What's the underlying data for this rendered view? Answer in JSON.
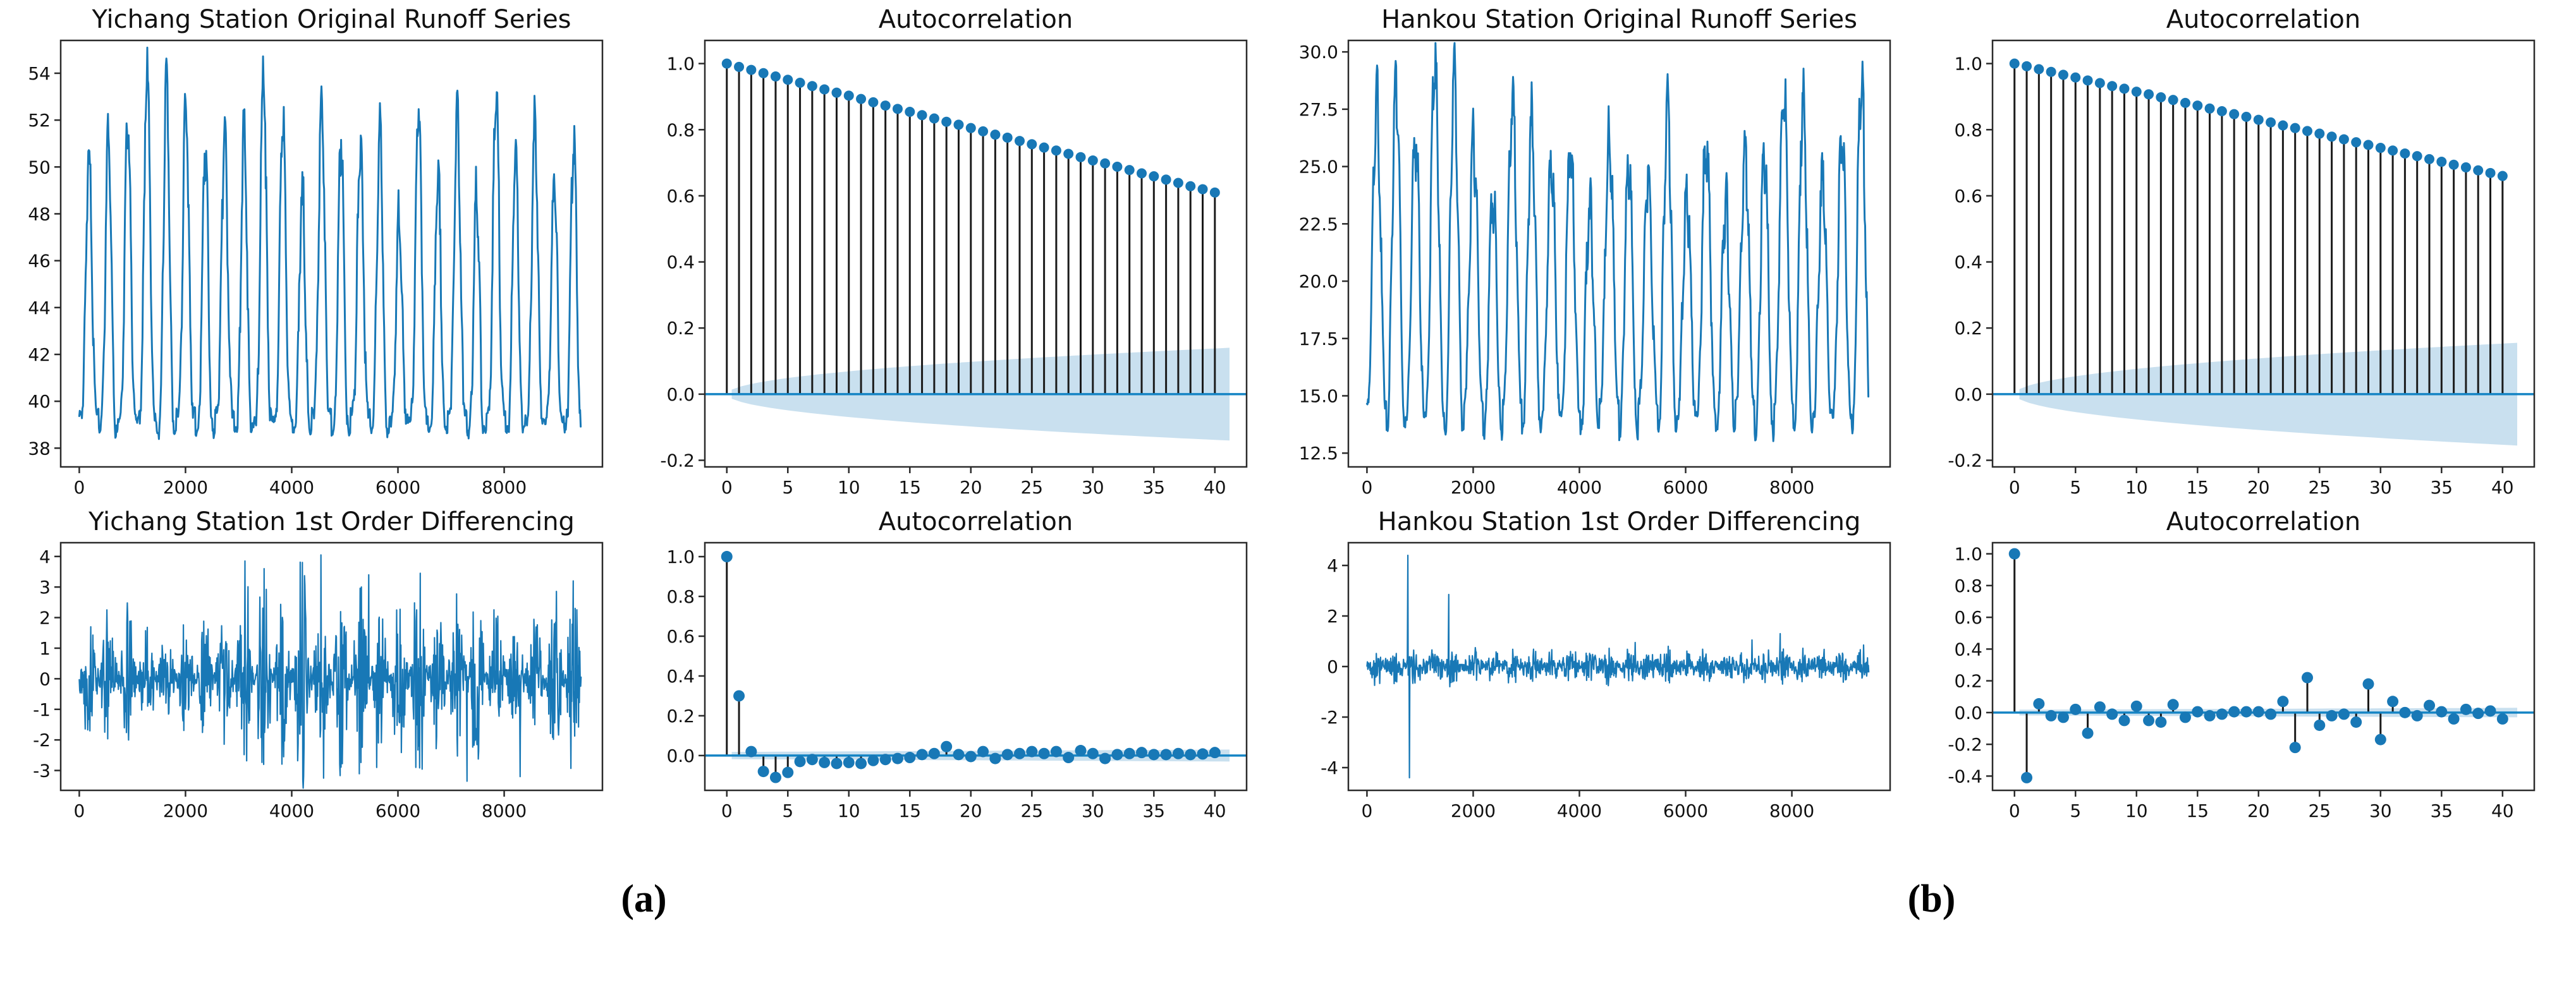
{
  "figure_captions": {
    "a": "(a)",
    "b": "(b)"
  },
  "palette": {
    "line_blue": "#1878b6",
    "dot_blue": "#1878b6",
    "zero_line_blue": "#1484c4",
    "band_blue": "#c9e0ef",
    "stem_black": "#1b1b1b",
    "axis_black": "#2b2b2b",
    "text_black": "#111111"
  },
  "chart_data": [
    {
      "id": "yichang-original",
      "panel": "a",
      "type": "line",
      "line_width": 3,
      "title": "Yichang Station Original Runoff Series",
      "xlim": [
        -350,
        9850
      ],
      "ylim": [
        37.2,
        55.4
      ],
      "x_tick_vals": [
        0,
        2000,
        4000,
        6000,
        8000
      ],
      "x_ticks": [
        "0",
        "2000",
        "4000",
        "6000",
        "8000"
      ],
      "y_tick_vals": [
        38,
        40,
        42,
        44,
        46,
        48,
        50,
        52,
        54
      ],
      "y_ticks": [
        "38",
        "40",
        "42",
        "44",
        "46",
        "48",
        "50",
        "52",
        "54"
      ],
      "grid": false,
      "legend": "none",
      "gen": {
        "kind": "seasonal",
        "seed": 7,
        "n": 9450,
        "step": 10,
        "period": 365,
        "sharpness": 3.5,
        "trough_base": 38.6,
        "trough_var": 1.0,
        "sub_osc": 1.0,
        "noise": 0.5,
        "peaks": [
          50.2,
          50.9,
          51.8,
          54.4,
          53.6,
          52.6,
          50.6,
          51.5,
          51.7,
          53.9,
          52.0,
          48.9,
          52.8,
          51.0,
          51.1,
          51.7,
          48.0,
          52.7,
          49.7,
          52.4,
          48.8,
          53.5,
          50.8,
          52.1,
          49.5,
          51.3
        ]
      }
    },
    {
      "id": "yichang-acf-original",
      "panel": "a",
      "type": "stem",
      "dot_r": 8,
      "title": "Autocorrelation",
      "xlim": [
        -1.8,
        42.6
      ],
      "ylim": [
        -0.22,
        1.07
      ],
      "x_tick_vals": [
        0,
        5,
        10,
        15,
        20,
        25,
        30,
        35,
        40
      ],
      "x_ticks": [
        "0",
        "5",
        "10",
        "15",
        "20",
        "25",
        "30",
        "35",
        "40"
      ],
      "y_tick_vals": [
        -0.2,
        0.0,
        0.2,
        0.4,
        0.6,
        0.8,
        1.0
      ],
      "y_ticks": [
        "-0.2",
        "0.0",
        "0.2",
        "0.4",
        "0.6",
        "0.8",
        "1.0"
      ],
      "band": {
        "max": 0.14,
        "shape": "sqrt"
      },
      "values": [
        1.0,
        0.99,
        0.981,
        0.971,
        0.961,
        0.951,
        0.942,
        0.932,
        0.922,
        0.912,
        0.903,
        0.893,
        0.883,
        0.873,
        0.863,
        0.854,
        0.844,
        0.834,
        0.824,
        0.815,
        0.805,
        0.795,
        0.785,
        0.776,
        0.766,
        0.756,
        0.746,
        0.737,
        0.727,
        0.717,
        0.707,
        0.698,
        0.688,
        0.678,
        0.668,
        0.659,
        0.649,
        0.639,
        0.629,
        0.62,
        0.61
      ]
    },
    {
      "id": "yichang-differencing",
      "panel": "a",
      "type": "line",
      "line_width": 2.2,
      "title": "Yichang Station 1st Order Differencing",
      "xlim": [
        -350,
        9850
      ],
      "ylim": [
        -3.65,
        4.45
      ],
      "x_tick_vals": [
        0,
        2000,
        4000,
        6000,
        8000
      ],
      "x_ticks": [
        "0",
        "2000",
        "4000",
        "6000",
        "8000"
      ],
      "y_tick_vals": [
        -3,
        -2,
        -1,
        0,
        1,
        2,
        3,
        4
      ],
      "y_ticks": [
        "-3",
        "-2",
        "-1",
        "0",
        "1",
        "2",
        "3",
        "4"
      ],
      "gen": {
        "kind": "diff",
        "seed": 13,
        "n": 9450,
        "step": 8,
        "period": 365,
        "base": 0.35,
        "amps": [
          1.7,
          1.9,
          2.0,
          1.6,
          1.5,
          1.6,
          1.9,
          2.2,
          3.5,
          3.3,
          2.4,
          3.7,
          2.6,
          3.0,
          3.1,
          2.0,
          2.5,
          3.1,
          2.4,
          3.0,
          2.9,
          2.3,
          2.7,
          2.1,
          2.6,
          2.8
        ],
        "spikes": [
          [
            3120,
            3.85
          ],
          [
            3480,
            3.6
          ],
          [
            4550,
            4.05
          ],
          [
            4600,
            -3.25
          ],
          [
            5450,
            3.4
          ],
          [
            5600,
            -2.9
          ],
          [
            6420,
            3.45
          ],
          [
            7300,
            -3.35
          ],
          [
            8300,
            -3.2
          ],
          [
            9300,
            3.2
          ]
        ]
      }
    },
    {
      "id": "yichang-acf-differenced",
      "panel": "a",
      "type": "stem",
      "dot_r": 9,
      "title": "Autocorrelation",
      "xlim": [
        -1.8,
        42.6
      ],
      "ylim": [
        -0.175,
        1.07
      ],
      "x_tick_vals": [
        0,
        5,
        10,
        15,
        20,
        25,
        30,
        35,
        40
      ],
      "x_ticks": [
        "0",
        "5",
        "10",
        "15",
        "20",
        "25",
        "30",
        "35",
        "40"
      ],
      "y_tick_vals": [
        0.0,
        0.2,
        0.4,
        0.6,
        0.8,
        1.0
      ],
      "y_ticks": [
        "0.0",
        "0.2",
        "0.4",
        "0.6",
        "0.8",
        "1.0"
      ],
      "band": {
        "max": 0.03,
        "shape": "flat"
      },
      "values": [
        1.0,
        0.3,
        0.02,
        -0.08,
        -0.11,
        -0.085,
        -0.03,
        -0.02,
        -0.035,
        -0.04,
        -0.035,
        -0.04,
        -0.025,
        -0.02,
        -0.015,
        -0.01,
        0.005,
        0.01,
        0.045,
        0.005,
        -0.005,
        0.02,
        -0.015,
        0.005,
        0.01,
        0.02,
        0.01,
        0.02,
        -0.01,
        0.025,
        0.01,
        -0.015,
        0.005,
        0.01,
        0.015,
        0.005,
        0.005,
        0.01,
        0.005,
        0.008,
        0.015
      ]
    },
    {
      "id": "hankou-original",
      "panel": "b",
      "type": "line",
      "line_width": 3,
      "title": "Hankou Station Original Runoff Series",
      "xlim": [
        -350,
        9850
      ],
      "ylim": [
        11.9,
        30.5
      ],
      "x_tick_vals": [
        0,
        2000,
        4000,
        6000,
        8000
      ],
      "x_ticks": [
        "0",
        "2000",
        "4000",
        "6000",
        "8000"
      ],
      "y_tick_vals": [
        12.5,
        15.0,
        17.5,
        20.0,
        22.5,
        25.0,
        27.5,
        30.0
      ],
      "y_ticks": [
        "12.5",
        "15.0",
        "17.5",
        "20.0",
        "22.5",
        "25.0",
        "27.5",
        "30.0"
      ],
      "gen": {
        "kind": "seasonal",
        "seed": 21,
        "n": 9450,
        "step": 10,
        "period": 365,
        "sharpness": 1.9,
        "trough_base": 13.2,
        "trough_var": 1.6,
        "sub_osc": 1.4,
        "noise": 0.55,
        "peaks": [
          27.8,
          28.7,
          26.2,
          29.5,
          28.9,
          25.7,
          23.7,
          27.9,
          26.9,
          25.2,
          25.8,
          23.2,
          26.2,
          25.0,
          24.3,
          27.4,
          23.4,
          26.3,
          23.3,
          25.6,
          25.4,
          28.4,
          27.8,
          24.8,
          26.5,
          28.9
        ]
      }
    },
    {
      "id": "hankou-acf-original",
      "panel": "b",
      "type": "stem",
      "dot_r": 8,
      "title": "Autocorrelation",
      "xlim": [
        -1.8,
        42.6
      ],
      "ylim": [
        -0.22,
        1.07
      ],
      "x_tick_vals": [
        0,
        5,
        10,
        15,
        20,
        25,
        30,
        35,
        40
      ],
      "x_ticks": [
        "0",
        "5",
        "10",
        "15",
        "20",
        "25",
        "30",
        "35",
        "40"
      ],
      "y_tick_vals": [
        -0.2,
        0.0,
        0.2,
        0.4,
        0.6,
        0.8,
        1.0
      ],
      "y_ticks": [
        "-0.2",
        "0.0",
        "0.2",
        "0.4",
        "0.6",
        "0.8",
        "1.0"
      ],
      "band": {
        "max": 0.155,
        "shape": "sqrt"
      },
      "values": [
        1.0,
        0.992,
        0.983,
        0.975,
        0.966,
        0.958,
        0.949,
        0.941,
        0.932,
        0.924,
        0.915,
        0.907,
        0.898,
        0.89,
        0.881,
        0.873,
        0.864,
        0.856,
        0.847,
        0.839,
        0.83,
        0.822,
        0.813,
        0.805,
        0.796,
        0.788,
        0.779,
        0.771,
        0.762,
        0.754,
        0.745,
        0.737,
        0.728,
        0.72,
        0.711,
        0.703,
        0.694,
        0.686,
        0.677,
        0.669,
        0.66
      ]
    },
    {
      "id": "hankou-differencing",
      "panel": "b",
      "type": "line",
      "line_width": 2.2,
      "title": "Hankou Station 1st Order Differencing",
      "xlim": [
        -350,
        9850
      ],
      "ylim": [
        -4.9,
        4.9
      ],
      "x_tick_vals": [
        0,
        2000,
        4000,
        6000,
        8000
      ],
      "x_ticks": [
        "0",
        "2000",
        "4000",
        "6000",
        "8000"
      ],
      "y_tick_vals": [
        -4,
        -2,
        0,
        2,
        4
      ],
      "y_ticks": [
        "-4",
        "-2",
        "0",
        "2",
        "4"
      ],
      "gen": {
        "kind": "diff",
        "seed": 42,
        "n": 9450,
        "step": 8,
        "period": 365,
        "base": 0.3,
        "amps": [
          0.45,
          0.5,
          0.4,
          0.55,
          0.5,
          0.4,
          0.35,
          0.5,
          0.45,
          0.4,
          0.45,
          0.35,
          0.45,
          0.4,
          0.4,
          0.5,
          0.35,
          0.45,
          0.35,
          0.4,
          0.45,
          0.5,
          0.5,
          0.4,
          0.45,
          0.5
        ],
        "spikes": [
          [
            770,
            4.4
          ],
          [
            800,
            -4.4
          ],
          [
            1540,
            2.85
          ],
          [
            1560,
            -0.8
          ],
          [
            5050,
            0.95
          ],
          [
            7250,
            1.05
          ],
          [
            7780,
            1.3
          ],
          [
            9350,
            0.85
          ]
        ]
      }
    },
    {
      "id": "hankou-acf-differenced",
      "panel": "b",
      "type": "stem",
      "dot_r": 9,
      "title": "Autocorrelation",
      "xlim": [
        -1.8,
        42.6
      ],
      "ylim": [
        -0.49,
        1.07
      ],
      "x_tick_vals": [
        0,
        5,
        10,
        15,
        20,
        25,
        30,
        35,
        40
      ],
      "x_ticks": [
        "0",
        "5",
        "10",
        "15",
        "20",
        "25",
        "30",
        "35",
        "40"
      ],
      "y_tick_vals": [
        -0.4,
        -0.2,
        0.0,
        0.2,
        0.4,
        0.6,
        0.8,
        1.0
      ],
      "y_ticks": [
        "-0.4",
        "-0.2",
        "0.0",
        "0.2",
        "0.4",
        "0.6",
        "0.8",
        "1.0"
      ],
      "band": {
        "max": 0.03,
        "shape": "flat"
      },
      "values": [
        1.0,
        -0.41,
        0.055,
        -0.02,
        -0.03,
        0.02,
        -0.13,
        0.035,
        -0.01,
        -0.05,
        0.04,
        -0.05,
        -0.06,
        0.05,
        -0.03,
        0.005,
        -0.02,
        -0.01,
        0.005,
        0.005,
        0.005,
        -0.01,
        0.07,
        -0.22,
        0.22,
        -0.08,
        -0.02,
        -0.01,
        -0.06,
        0.18,
        -0.17,
        0.07,
        0.0,
        -0.02,
        0.045,
        0.005,
        -0.04,
        0.02,
        -0.005,
        0.01,
        -0.04
      ]
    }
  ]
}
